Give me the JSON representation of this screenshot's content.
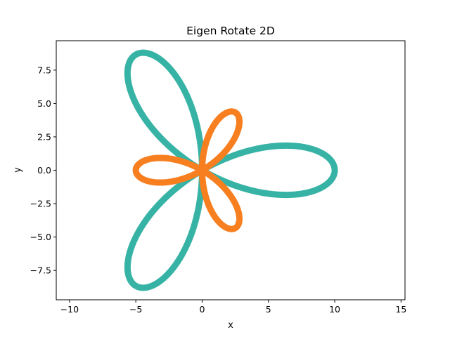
{
  "chart_data": {
    "type": "line",
    "title": "Eigen Rotate 2D",
    "xlabel": "x",
    "ylabel": "y",
    "xlim": [
      -11,
      15.3
    ],
    "ylim": [
      -9.7,
      9.7
    ],
    "xticks": [
      -10,
      -5,
      0,
      5,
      10,
      15
    ],
    "xtick_labels": [
      "−10",
      "−5",
      "0",
      "5",
      "10",
      "15"
    ],
    "yticks": [
      -7.5,
      -5.0,
      -2.5,
      0.0,
      2.5,
      5.0,
      7.5
    ],
    "ytick_labels": [
      "−7.5",
      "−5.0",
      "−2.5",
      "0.0",
      "2.5",
      "5.0",
      "7.5"
    ],
    "grid": false,
    "legend": "none",
    "series": [
      {
        "color": "#37b3a6",
        "curve": "rose r = a·cos(3θ)",
        "amplitude": 10,
        "rotation_deg": 0,
        "petals": 3
      },
      {
        "color": "#f77f20",
        "curve": "rose r = a·cos(3θ)",
        "amplitude": 5,
        "rotation_deg": -60,
        "petals": 3
      }
    ]
  }
}
